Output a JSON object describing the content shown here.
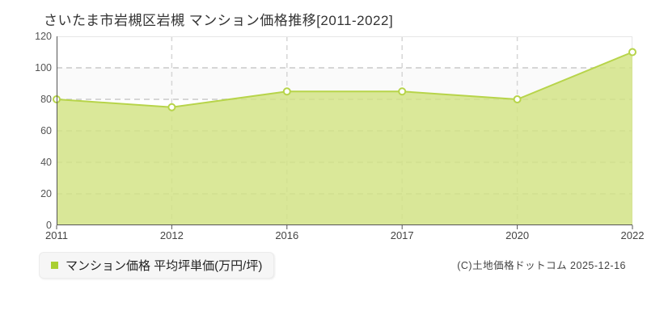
{
  "header": {
    "title": "さいたま市岩槻区岩槻 マンション価格推移[2011-2022]"
  },
  "legend": {
    "label": "マンション価格 平均坪単価(万円/坪)"
  },
  "footer": {
    "credit": "(C)土地価格ドットコム 2025-12-16"
  },
  "chart_data": {
    "type": "area",
    "title": "さいたま市岩槻区岩槻 マンション価格推移[2011-2022]",
    "series_name": "マンション価格 平均坪単価(万円/坪)",
    "categories": [
      "2011",
      "2012",
      "2016",
      "2017",
      "2020",
      "2022"
    ],
    "values": [
      80,
      75,
      85,
      85,
      80,
      110
    ],
    "xlabel": "",
    "ylabel": "平均坪単価(万円/坪)",
    "ylim": [
      0,
      120
    ],
    "y_ticks": [
      0,
      20,
      40,
      60,
      80,
      100,
      120
    ],
    "grid": true,
    "grid_style": "dashed",
    "legend_position": "bottom-left",
    "colors": {
      "line": "#b7d44a",
      "area_fill": "#d2e383",
      "area_opacity": 0.82,
      "marker_fill": "#ffffff",
      "legend_swatch": "#a9cf33",
      "grid": "#d6d6d6",
      "axis": "#555555",
      "frame": "#e6e6e6",
      "band_alt": "#fafafa",
      "band_main": "#ffffff",
      "title_text": "#333333",
      "tick_text": "#555555"
    }
  }
}
